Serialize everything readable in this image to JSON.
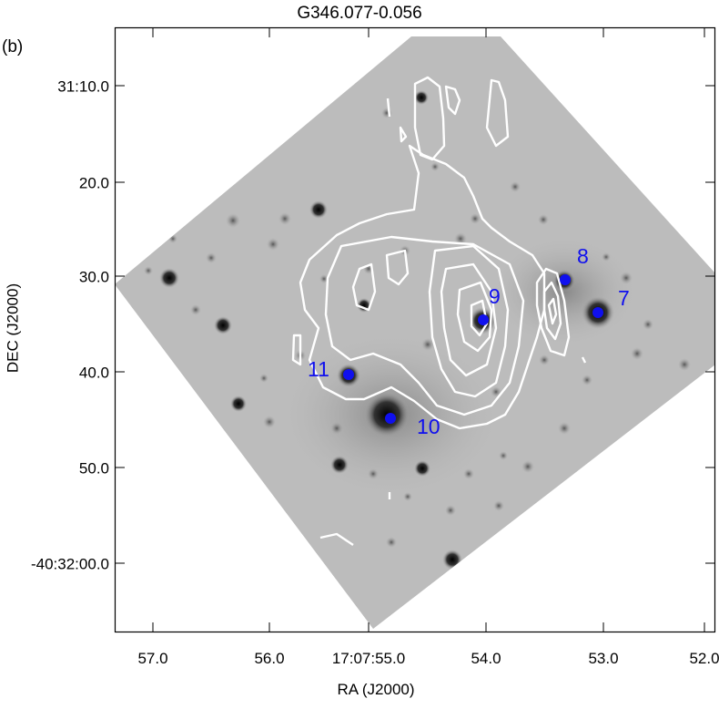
{
  "figure": {
    "title": "G346.077-0.056",
    "panel_label": "(b)",
    "x_axis_label": "RA (J2000)",
    "y_axis_label": "DEC (J2000)",
    "x_ticks": [
      "57.0",
      "56.0",
      "17:07:55.0",
      "54.0",
      "53.0",
      "52.0"
    ],
    "y_ticks": [
      "31:10.0",
      "20.0",
      "30.0",
      "40.0",
      "50.0",
      "-40:32:00.0"
    ],
    "sources": [
      {
        "label": "7"
      },
      {
        "label": "8"
      },
      {
        "label": "9"
      },
      {
        "label": "10"
      },
      {
        "label": "11"
      }
    ],
    "colors": {
      "image_background": "#b8b8b8",
      "contours": "#ffffff",
      "source_markers": "#1010ee"
    }
  }
}
